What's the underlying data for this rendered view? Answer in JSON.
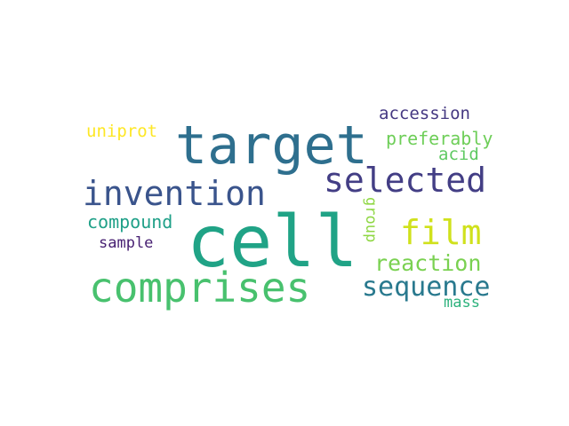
{
  "words": [
    {
      "key": "cell",
      "text": "cell",
      "color": "#20a386"
    },
    {
      "key": "target",
      "text": "target",
      "color": "#2e6f8e"
    },
    {
      "key": "comprises",
      "text": "comprises",
      "color": "#48c16e"
    },
    {
      "key": "invention",
      "text": "invention",
      "color": "#3a548c"
    },
    {
      "key": "selected",
      "text": "selected",
      "color": "#433e85"
    },
    {
      "key": "film",
      "text": "film",
      "color": "#d0e11c"
    },
    {
      "key": "sequence",
      "text": "sequence",
      "color": "#29798e"
    },
    {
      "key": "reaction",
      "text": "reaction",
      "color": "#7ad151"
    },
    {
      "key": "preferably",
      "text": "preferably",
      "color": "#6ece58"
    },
    {
      "key": "accession",
      "text": "accession",
      "color": "#453882"
    },
    {
      "key": "acid",
      "text": "acid",
      "color": "#5ec962"
    },
    {
      "key": "uniprot",
      "text": "uniprot",
      "color": "#fde725"
    },
    {
      "key": "compound",
      "text": "compound",
      "color": "#1fa088"
    },
    {
      "key": "sample",
      "text": "sample",
      "color": "#482173"
    },
    {
      "key": "group",
      "text": "group",
      "color": "#8fd744"
    },
    {
      "key": "mass",
      "text": "mass",
      "color": "#2db27d"
    }
  ]
}
